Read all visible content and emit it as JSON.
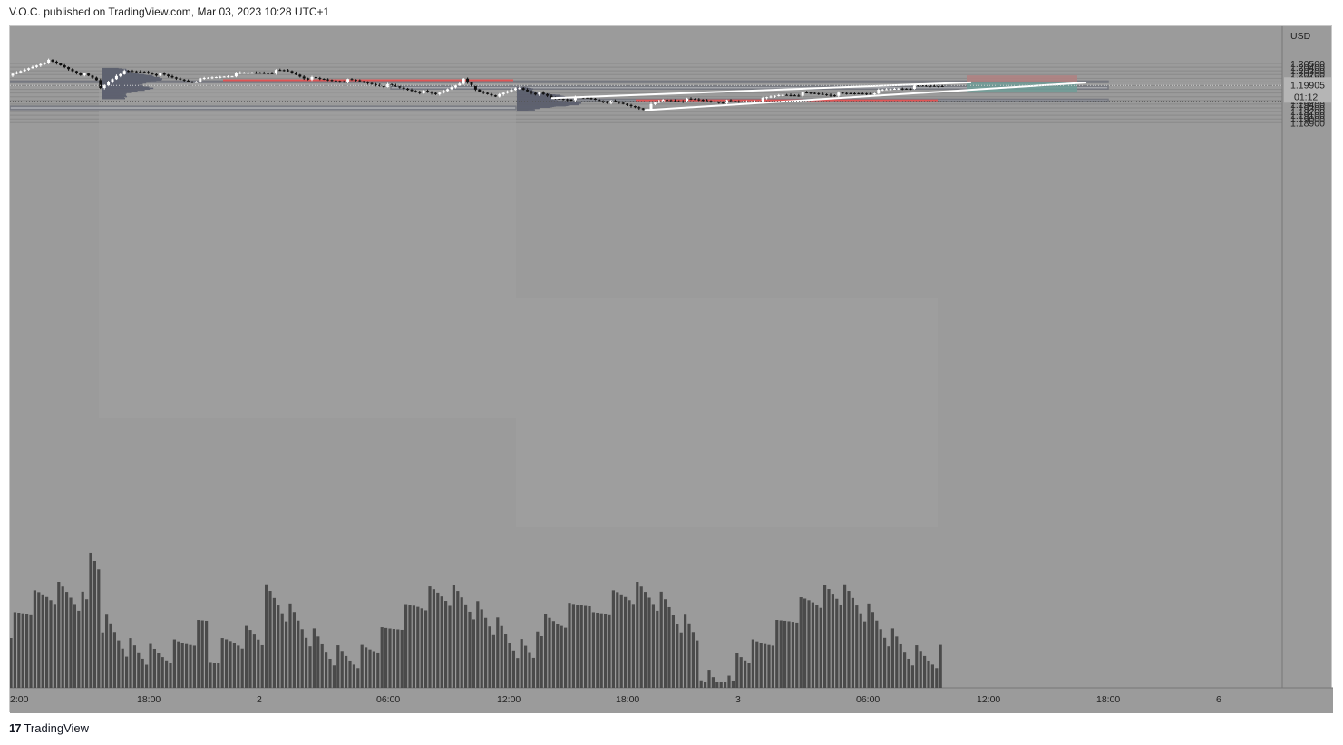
{
  "header": {
    "published_by": "V.O.C. published on TradingView.com, Mar 03, 2023 10:28 UTC+1"
  },
  "footer": {
    "brand": "TradingView",
    "logo_glyph": "17"
  },
  "colors": {
    "background": "#9b9b9b",
    "grid": "#8a8a8a",
    "bull_candle": "#ffffff",
    "bear_candle": "#111111",
    "volume": "#4a4a4a",
    "volume_profile": "#5f6270",
    "poc_line": "#e05555",
    "trend_line": "#ffffff",
    "zone_fill": "#a6a8ae",
    "stop_zone": "#b08080",
    "target_zone": "#6f9c96"
  },
  "chart_data": {
    "type": "candlestick",
    "symbol_currency": "USD",
    "y_axis": {
      "min": 1.1882,
      "max": 1.2057,
      "tick_labels": [
        "1.20500",
        "1.20400",
        "1.20300",
        "1.20200",
        "1.20100",
        "1.20000",
        "1.19900",
        "1.19800",
        "1.19700",
        "1.19600",
        "1.19500",
        "1.19400",
        "1.19300",
        "1.19200",
        "1.19100",
        "1.19000",
        "1.18900"
      ]
    },
    "x_axis": {
      "tick_labels": [
        "2:00",
        "18:00",
        "2",
        "06:00",
        "12:00",
        "18:00",
        "3",
        "06:00",
        "12:00",
        "18:00",
        "6"
      ]
    },
    "last_price": "1.19905",
    "countdown": "01:12",
    "horizontal_zones": [
      {
        "from": 1.19985,
        "to": 1.20025
      },
      {
        "from": 1.19808,
        "to": 1.19883
      },
      {
        "from": 1.19487,
        "to": 1.19535
      },
      {
        "from": 1.19255,
        "to": 1.19345
      }
    ],
    "poc_lines": [
      {
        "price": 1.20048
      },
      {
        "price": 1.19506
      }
    ],
    "wedge_lines": [
      {
        "from_price": 1.19562,
        "to_price": 1.19988
      },
      {
        "from_price": 1.19237,
        "to_price": 1.19983
      }
    ],
    "position": {
      "entry": 1.19983,
      "stop": 1.20178,
      "target": 1.19712
    },
    "series": [
      {
        "name": "price",
        "ohlc": []
      },
      {
        "name": "volume",
        "values": []
      }
    ]
  }
}
